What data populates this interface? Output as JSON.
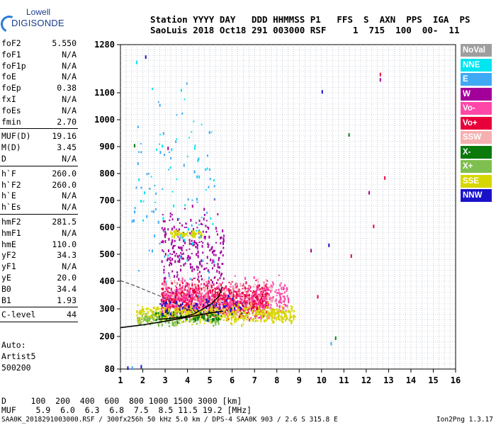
{
  "logo": {
    "line1": "Lowell",
    "line2": "DIGISONDE"
  },
  "header": {
    "line1": "Station YYYY DAY   DDD HHMMSS P1   FFS  S  AXN  PPS  IGA  PS",
    "line2": "SaoLuis 2018 Oct18 291 003000 RSF     1  715  100  00-  11"
  },
  "params_group1": [
    {
      "k": "foF2",
      "v": "5.550"
    },
    {
      "k": "foF1",
      "v": "N/A"
    },
    {
      "k": "foF1p",
      "v": "N/A"
    },
    {
      "k": "foE",
      "v": "N/A"
    },
    {
      "k": "foEp",
      "v": "0.38"
    },
    {
      "k": "fxI",
      "v": "N/A"
    },
    {
      "k": "foEs",
      "v": "N/A"
    },
    {
      "k": "fmin",
      "v": "2.70"
    }
  ],
  "params_group2": [
    {
      "k": "MUF(D)",
      "v": "19.16"
    },
    {
      "k": "M(D)",
      "v": "3.45"
    },
    {
      "k": "D",
      "v": "N/A"
    }
  ],
  "params_group3": [
    {
      "k": "h`F",
      "v": "260.0"
    },
    {
      "k": "h`F2",
      "v": "260.0"
    },
    {
      "k": "h`E",
      "v": "N/A"
    },
    {
      "k": "h`Es",
      "v": "N/A"
    }
  ],
  "params_group4": [
    {
      "k": "hmF2",
      "v": "281.5"
    },
    {
      "k": "hmF1",
      "v": "N/A"
    },
    {
      "k": "hmE",
      "v": "110.0"
    },
    {
      "k": "yF2",
      "v": "34.3"
    },
    {
      "k": "yF1",
      "v": "N/A"
    },
    {
      "k": "yE",
      "v": "20.0"
    },
    {
      "k": "B0",
      "v": "34.4"
    },
    {
      "k": "B1",
      "v": "1.93"
    }
  ],
  "params_group5": [
    {
      "k": "C-level",
      "v": "44"
    }
  ],
  "auto_block": {
    "line1": "Auto:",
    "line2": "Artist5",
    "line3": "500200"
  },
  "legend": [
    {
      "label": "NoVal",
      "color": "#9e9e9e"
    },
    {
      "label": "NNE",
      "color": "#00e5f0"
    },
    {
      "label": "E",
      "color": "#3fa9f5"
    },
    {
      "label": "W",
      "color": "#a3009b"
    },
    {
      "label": "Vo-",
      "color": "#ff47a8"
    },
    {
      "label": "Vo+",
      "color": "#e8003a"
    },
    {
      "label": "SSW",
      "color": "#f5b0b0"
    },
    {
      "label": "X-",
      "color": "#0b7a0b"
    },
    {
      "label": "X+",
      "color": "#7fbf4f"
    },
    {
      "label": "SSE",
      "color": "#d6d600"
    },
    {
      "label": "NNW",
      "color": "#1a12c8"
    }
  ],
  "muf_table": {
    "row_d": "D     100  200  400  600  800 1000 1500 3000 [km]",
    "row_muf": "MUF    5.9  6.0  6.3  6.8  7.5  8.5 11.5 19.2 [MHz]"
  },
  "footer": "SAA0K_2018291003000.RSF / 300fx256h 50 kHz 5.0 km / DPS-4 SAA0K 903 / 2.6 S 315.8 E",
  "version": "Ion2Png 1.3.17",
  "chart_data": {
    "type": "scatter",
    "x_ticks": [
      1,
      2,
      3,
      4,
      5,
      6,
      7,
      8,
      9,
      10,
      11,
      12,
      13,
      14,
      15,
      16
    ],
    "y_ticks": [
      80,
      200,
      300,
      400,
      500,
      600,
      700,
      800,
      900,
      1000,
      1100,
      1280
    ],
    "xlim": [
      1,
      16
    ],
    "ylim": [
      80,
      1280
    ],
    "grid": true,
    "x_unit": "MHz",
    "y_unit": "km",
    "trace_line": {
      "x": [
        1.0,
        2.0,
        3.0,
        4.0,
        5.0,
        5.6
      ],
      "y": [
        232,
        242,
        255,
        270,
        285,
        292
      ]
    },
    "profile_line": {
      "x": [
        2.7,
        3.3,
        3.9,
        4.3,
        4.7,
        5.1,
        5.4,
        5.55
      ],
      "y": [
        262,
        266,
        272,
        282,
        300,
        320,
        345,
        380
      ]
    },
    "dashed_line": {
      "x": [
        1.0,
        1.6,
        2.2,
        2.8,
        3.3,
        3.8,
        4.3,
        4.8
      ],
      "y": [
        402,
        385,
        365,
        345,
        325,
        305,
        290,
        278
      ]
    },
    "scatter_clusters": [
      {
        "color": "#e8003a",
        "x": [
          2.8,
          7.6
        ],
        "y": [
          250,
          420
        ],
        "count": 900
      },
      {
        "color": "#ff47a8",
        "x": [
          2.8,
          8.5
        ],
        "y": [
          240,
          440
        ],
        "count": 500
      },
      {
        "color": "#a3009b",
        "x": [
          2.8,
          5.6
        ],
        "y": [
          300,
          720
        ],
        "count": 260
      },
      {
        "color": "#d6d600",
        "x": [
          1.7,
          8.8
        ],
        "y": [
          238,
          330
        ],
        "count": 600
      },
      {
        "color": "#d6d600",
        "x": [
          3.2,
          4.7
        ],
        "y": [
          560,
          600
        ],
        "count": 70
      },
      {
        "color": "#7fbf4f",
        "x": [
          1.7,
          5.4
        ],
        "y": [
          230,
          300
        ],
        "count": 150
      },
      {
        "color": "#0b7a0b",
        "x": [
          2.5,
          5.5
        ],
        "y": [
          250,
          300
        ],
        "count": 60
      },
      {
        "color": "#1a12c8",
        "x": [
          2.7,
          6.5
        ],
        "y": [
          260,
          360
        ],
        "count": 80
      },
      {
        "color": "#3fa9f5",
        "x": [
          1.5,
          5.2
        ],
        "y": [
          220,
          1260
        ],
        "count": 70
      },
      {
        "color": "#00e5f0",
        "x": [
          1.5,
          5.2
        ],
        "y": [
          300,
          1260
        ],
        "count": 50
      },
      {
        "color": "#f5b0b0",
        "x": [
          2.8,
          7.8
        ],
        "y": [
          270,
          450
        ],
        "count": 120
      }
    ],
    "isolated_points": [
      {
        "x": 10.0,
        "y": 1110,
        "color": "#1a12c8"
      },
      {
        "x": 11.2,
        "y": 950,
        "color": "#0b7a0b"
      },
      {
        "x": 12.6,
        "y": 1175,
        "color": "#e8003a"
      },
      {
        "x": 12.6,
        "y": 1155,
        "color": "#a3009b"
      },
      {
        "x": 12.1,
        "y": 735,
        "color": "#a3009b"
      },
      {
        "x": 12.3,
        "y": 610,
        "color": "#e8003a"
      },
      {
        "x": 10.3,
        "y": 540,
        "color": "#1a12c8"
      },
      {
        "x": 10.6,
        "y": 200,
        "color": "#0b7a0b"
      },
      {
        "x": 10.4,
        "y": 180,
        "color": "#3fa9f5"
      },
      {
        "x": 11.3,
        "y": 500,
        "color": "#e8003a"
      },
      {
        "x": 9.8,
        "y": 350,
        "color": "#e8003a"
      },
      {
        "x": 1.5,
        "y": 90,
        "color": "#3fa9f5"
      },
      {
        "x": 1.9,
        "y": 95,
        "color": "#1a12c8"
      },
      {
        "x": 1.3,
        "y": 90,
        "color": "#1a12c8"
      },
      {
        "x": 1.6,
        "y": 910,
        "color": "#0b7a0b"
      },
      {
        "x": 1.7,
        "y": 1220,
        "color": "#00e5f0"
      },
      {
        "x": 2.1,
        "y": 1240,
        "color": "#1a12c8"
      },
      {
        "x": 3.1,
        "y": 900,
        "color": "#a3009b"
      },
      {
        "x": 12.8,
        "y": 790,
        "color": "#e8003a"
      },
      {
        "x": 9.5,
        "y": 520,
        "color": "#a3009b"
      }
    ]
  }
}
